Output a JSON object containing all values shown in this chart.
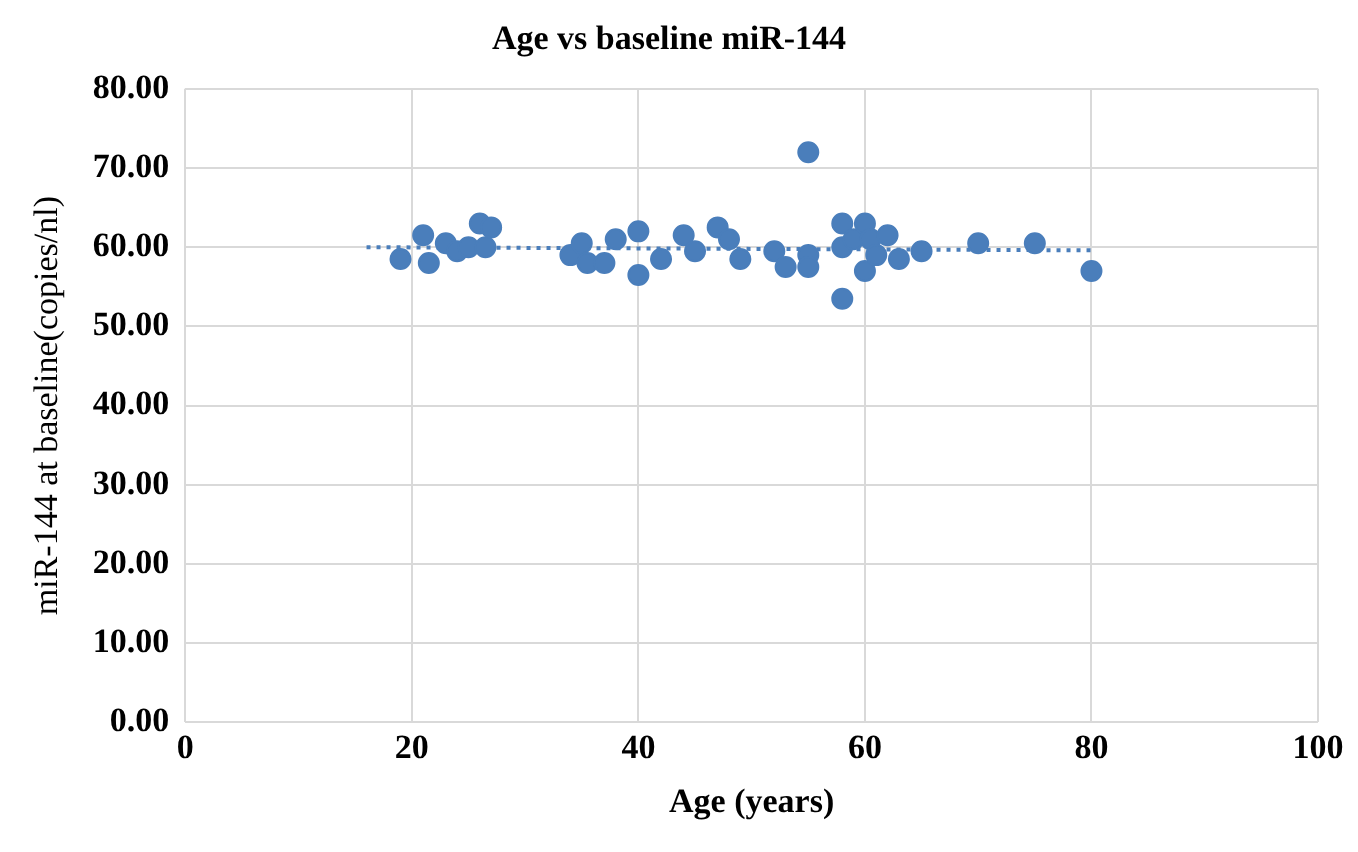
{
  "chart_data": {
    "type": "scatter",
    "title": "Age vs baseline miR-144",
    "xlabel": "Age (years)",
    "ylabel": "miR-144 at baseline(copies/nl)",
    "xlim": [
      0,
      100
    ],
    "xticks": [
      0,
      20,
      40,
      60,
      80,
      100
    ],
    "ylim": [
      0,
      80
    ],
    "yticks": [
      {
        "value": 0,
        "label": "0.00"
      },
      {
        "value": 10,
        "label": "10.00"
      },
      {
        "value": 20,
        "label": "20.00"
      },
      {
        "value": 30,
        "label": "30.00"
      },
      {
        "value": 40,
        "label": "40.00"
      },
      {
        "value": 50,
        "label": "50.00"
      },
      {
        "value": 60,
        "label": "60.00"
      },
      {
        "value": 70,
        "label": "70.00"
      },
      {
        "value": 80,
        "label": "80.00"
      }
    ],
    "grid": true,
    "legend": false,
    "marker": "circle",
    "series": [
      {
        "color": "#4a7ebb",
        "x": [
          19,
          21,
          21.5,
          23,
          24,
          25,
          26,
          26.5,
          27,
          34,
          35,
          35.5,
          37,
          38,
          40,
          40,
          42,
          44,
          45,
          47,
          48,
          49,
          52,
          53,
          55,
          55,
          55,
          58,
          58,
          58,
          59,
          60,
          60,
          60.5,
          61,
          62,
          63,
          65,
          70,
          75,
          80
        ],
        "values": [
          58.5,
          61.5,
          58,
          60.5,
          59.5,
          60,
          63,
          60,
          62.5,
          59,
          60.5,
          58,
          58,
          61,
          62,
          56.5,
          58.5,
          61.5,
          59.5,
          62.5,
          61,
          58.5,
          59.5,
          57.5,
          72,
          59,
          57.5,
          53.5,
          63,
          60,
          61,
          63,
          57,
          61,
          59,
          61.5,
          58.5,
          59.5,
          60.5,
          60.5,
          57
        ]
      },
      {
        "type": "line",
        "color": "#4a7ebb",
        "line_style": "dotted",
        "marker": "none",
        "x": [
          16,
          80
        ],
        "values": [
          60,
          59.6
        ]
      }
    ]
  }
}
